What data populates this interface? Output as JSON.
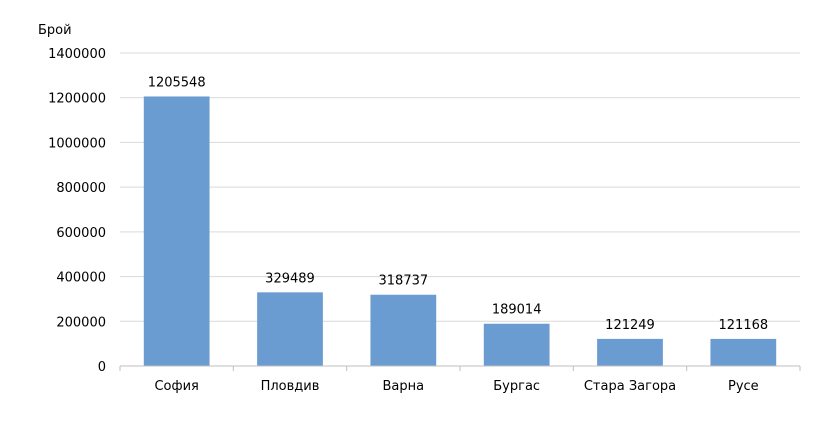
{
  "chart_data": {
    "type": "bar",
    "title": "",
    "xlabel": "",
    "ylabel": "Брой",
    "ylim": [
      0,
      1400000
    ],
    "yticks": [
      0,
      200000,
      400000,
      600000,
      800000,
      1000000,
      1200000,
      1400000
    ],
    "ytick_labels": [
      "0",
      "200000",
      "400000",
      "600000",
      "800000",
      "1000000",
      "1200000",
      "1400000"
    ],
    "categories": [
      "София",
      "Пловдив",
      "Варна",
      "Бургас",
      "Стара Загора",
      "Русе"
    ],
    "values": [
      1205548,
      329489,
      318737,
      189014,
      121249,
      121168
    ],
    "value_labels": [
      "1205548",
      "329489",
      "318737",
      "189014",
      "121249",
      "121168"
    ],
    "grid": true,
    "legend": "none",
    "bar_color": "#6a9bd1",
    "grid_color": "#d9d9d9",
    "axis_color": "#bfbfbf"
  }
}
